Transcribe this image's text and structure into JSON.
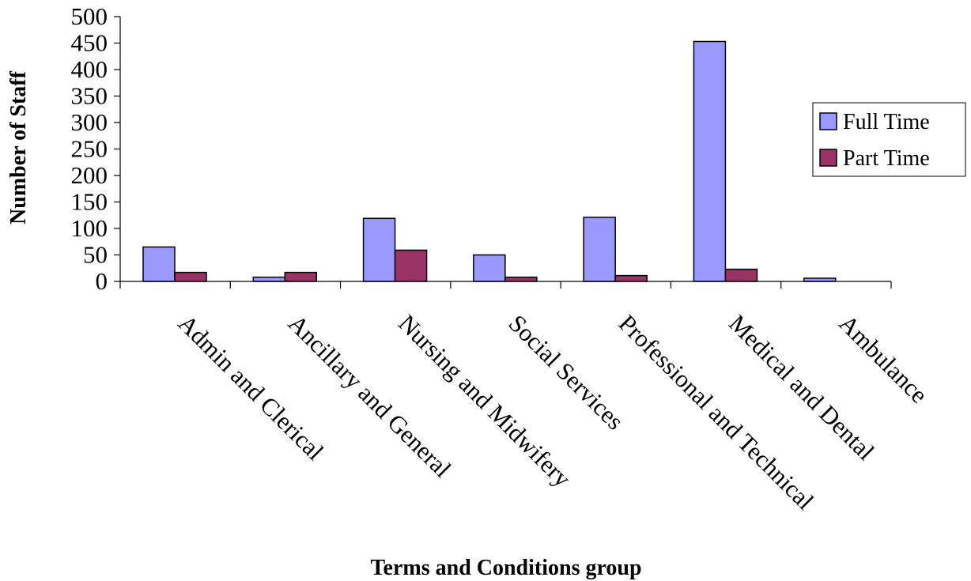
{
  "chart_data": {
    "type": "bar",
    "categories": [
      "Admin and Clerical",
      "Ancillary and General",
      "Nursing and Midwifery",
      "Social Services",
      "Professional and Technical",
      "Medical and Dental",
      "Ambulance"
    ],
    "series": [
      {
        "name": "Full Time",
        "color": "#9999ff",
        "values": [
          65,
          8,
          119,
          50,
          121,
          453,
          6
        ]
      },
      {
        "name": "Part Time",
        "color": "#993366",
        "values": [
          17,
          17,
          59,
          8,
          11,
          23,
          0
        ]
      }
    ],
    "xlabel": "Terms and Conditions group",
    "ylabel": "Number of Staff",
    "ylim": [
      0,
      500
    ],
    "yticks": [
      0,
      50,
      100,
      150,
      200,
      250,
      300,
      350,
      400,
      450,
      500
    ],
    "grid": false,
    "legend_position": "right"
  }
}
